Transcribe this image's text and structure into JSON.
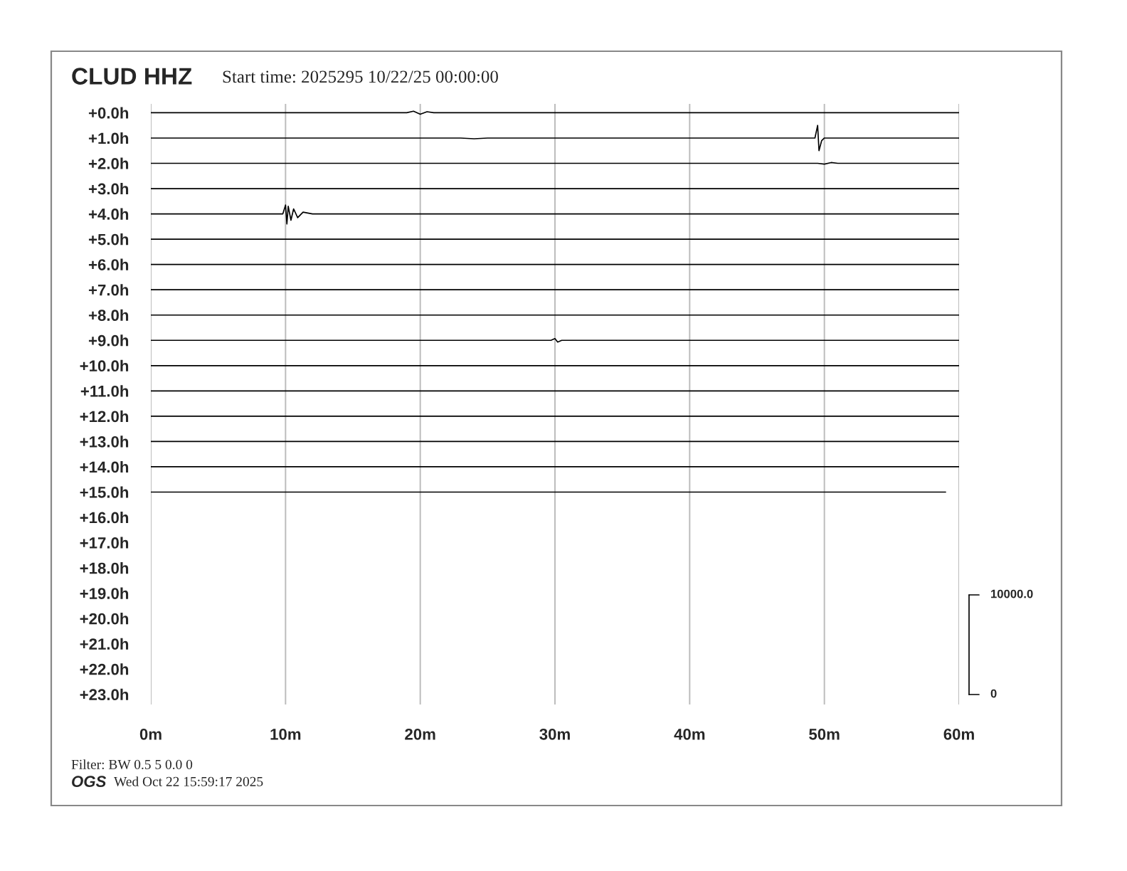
{
  "chart_data": {
    "type": "line",
    "title": "CLUD HHZ",
    "subtitle": "Start time: 2025295 10/22/25 00:00:00",
    "annotations": [
      "Filter: BW 0.5 5 0.0 0",
      "OGS",
      "Wed Oct 22 15:59:17 2025",
      "10000.0",
      "0"
    ],
    "xlim": [
      0,
      60
    ],
    "xticks": [
      {
        "value": 0,
        "label": "0m"
      },
      {
        "value": 10,
        "label": "10m"
      },
      {
        "value": 20,
        "label": "20m"
      },
      {
        "value": 30,
        "label": "30m"
      },
      {
        "value": 40,
        "label": "40m"
      },
      {
        "value": 50,
        "label": "50m"
      },
      {
        "value": 60,
        "label": "60m"
      }
    ],
    "ylim": [
      -23.4,
      0.35
    ],
    "yticks": [
      {
        "value": 0,
        "label": "+0.0h"
      },
      {
        "value": -1,
        "label": "+1.0h"
      },
      {
        "value": -2,
        "label": "+2.0h"
      },
      {
        "value": -3,
        "label": "+3.0h"
      },
      {
        "value": -4,
        "label": "+4.0h"
      },
      {
        "value": -5,
        "label": "+5.0h"
      },
      {
        "value": -6,
        "label": "+6.0h"
      },
      {
        "value": -7,
        "label": "+7.0h"
      },
      {
        "value": -8,
        "label": "+8.0h"
      },
      {
        "value": -9,
        "label": "+9.0h"
      },
      {
        "value": -10,
        "label": "+10.0h"
      },
      {
        "value": -11,
        "label": "+11.0h"
      },
      {
        "value": -12,
        "label": "+12.0h"
      },
      {
        "value": -13,
        "label": "+13.0h"
      },
      {
        "value": -14,
        "label": "+14.0h"
      },
      {
        "value": -15,
        "label": "+15.0h"
      },
      {
        "value": -16,
        "label": "+16.0h"
      },
      {
        "value": -17,
        "label": "+17.0h"
      },
      {
        "value": -18,
        "label": "+18.0h"
      },
      {
        "value": -19,
        "label": "+19.0h"
      },
      {
        "value": -20,
        "label": "+20.0h"
      },
      {
        "value": -21,
        "label": "+21.0h"
      },
      {
        "value": -22,
        "label": "+22.0h"
      },
      {
        "value": -23,
        "label": "+23.0h"
      }
    ],
    "grid": "x",
    "marker": "none",
    "line_style": "solid",
    "series": [
      {
        "color": "#000000",
        "x": [
          0,
          19,
          19.5,
          20,
          20.5,
          21,
          60
        ],
        "values": [
          0,
          0,
          0.06,
          -0.06,
          0.04,
          0,
          0
        ]
      },
      {
        "color": "#000000",
        "x": [
          0,
          23,
          24,
          25,
          49.3,
          49.5,
          49.6,
          49.8,
          50,
          60
        ],
        "values": [
          -1,
          -1,
          -1.03,
          -1,
          -1,
          -0.5,
          -1.5,
          -1.1,
          -1,
          -1
        ]
      },
      {
        "color": "#000000",
        "x": [
          0,
          49.5,
          50,
          50.5,
          51,
          60
        ],
        "values": [
          -2,
          -2,
          -2.03,
          -1.97,
          -2,
          -2
        ]
      },
      {
        "color": "#000000",
        "x": [
          0,
          60
        ],
        "values": [
          -3,
          -3
        ]
      },
      {
        "color": "#000000",
        "x": [
          0,
          9.8,
          10,
          10.1,
          10.2,
          10.4,
          10.6,
          10.9,
          11.3,
          12,
          60
        ],
        "values": [
          -4,
          -4,
          -3.65,
          -4.4,
          -3.7,
          -4.25,
          -3.8,
          -4.15,
          -3.93,
          -4,
          -4
        ]
      },
      {
        "color": "#000000",
        "x": [
          0,
          60
        ],
        "values": [
          -5,
          -5
        ]
      },
      {
        "color": "#000000",
        "x": [
          0,
          60
        ],
        "values": [
          -6,
          -6
        ]
      },
      {
        "color": "#000000",
        "x": [
          0,
          60
        ],
        "values": [
          -7,
          -7
        ]
      },
      {
        "color": "#000000",
        "x": [
          0,
          60
        ],
        "values": [
          -8,
          -8
        ]
      },
      {
        "color": "#000000",
        "x": [
          0,
          29.7,
          30,
          30.2,
          30.5,
          60
        ],
        "values": [
          -9,
          -9,
          -8.93,
          -9.07,
          -9,
          -9
        ]
      },
      {
        "color": "#000000",
        "x": [
          0,
          60
        ],
        "values": [
          -10,
          -10
        ]
      },
      {
        "color": "#000000",
        "x": [
          0,
          60
        ],
        "values": [
          -11,
          -11
        ]
      },
      {
        "color": "#000000",
        "x": [
          0,
          60
        ],
        "values": [
          -12,
          -12
        ]
      },
      {
        "color": "#000000",
        "x": [
          0,
          60
        ],
        "values": [
          -13,
          -13
        ]
      },
      {
        "color": "#000000",
        "x": [
          0,
          60
        ],
        "values": [
          -14,
          -14
        ]
      },
      {
        "color": "#000000",
        "x": [
          0,
          59
        ],
        "values": [
          -15,
          -15
        ]
      }
    ]
  }
}
